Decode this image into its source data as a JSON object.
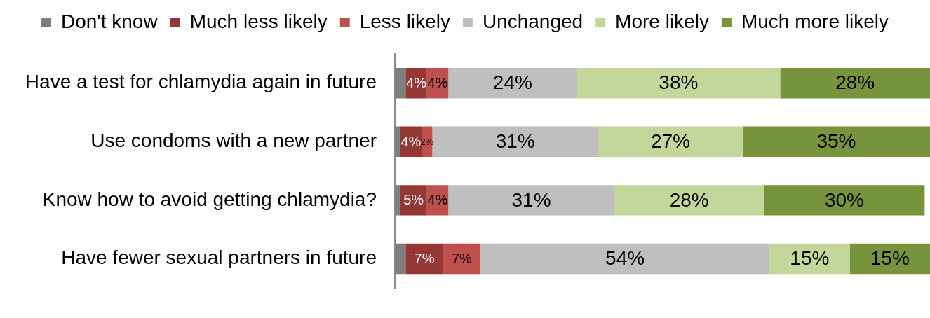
{
  "chart_data": {
    "type": "bar",
    "orientation": "horizontal",
    "stacked": true,
    "categories": [
      "Have a test for chlamydia again in future",
      "Use condoms with a new partner",
      "Know how to avoid getting chlamydia?",
      "Have fewer sexual partners in future"
    ],
    "xlim": [
      0,
      100
    ],
    "series": [
      {
        "name": "Don't know",
        "color": "#7f7f7f",
        "values": [
          2,
          1,
          1,
          2
        ],
        "value_labels": [
          null,
          null,
          null,
          null
        ]
      },
      {
        "name": "Much less likely",
        "color": "#953735",
        "values": [
          4,
          4,
          5,
          7
        ],
        "value_labels": [
          "4%",
          "4%",
          "5%",
          "7%"
        ]
      },
      {
        "name": "Less likely",
        "color": "#c0504d",
        "values": [
          4,
          2,
          4,
          7
        ],
        "value_labels": [
          "4%",
          "2%",
          "4%",
          "7%"
        ]
      },
      {
        "name": "Unchanged",
        "color": "#bfbfbf",
        "values": [
          24,
          31,
          31,
          54
        ],
        "value_labels": [
          "24%",
          "31%",
          "31%",
          "54%"
        ]
      },
      {
        "name": "More likely",
        "color": "#c4d79b",
        "values": [
          38,
          27,
          28,
          15
        ],
        "value_labels": [
          "38%",
          "27%",
          "28%",
          "15%"
        ]
      },
      {
        "name": "Much more likely",
        "color": "#77933c",
        "values": [
          28,
          35,
          30,
          15
        ],
        "value_labels": [
          "28%",
          "35%",
          "30%",
          "15%"
        ]
      }
    ],
    "legend": "top",
    "tick_labels": "y"
  }
}
